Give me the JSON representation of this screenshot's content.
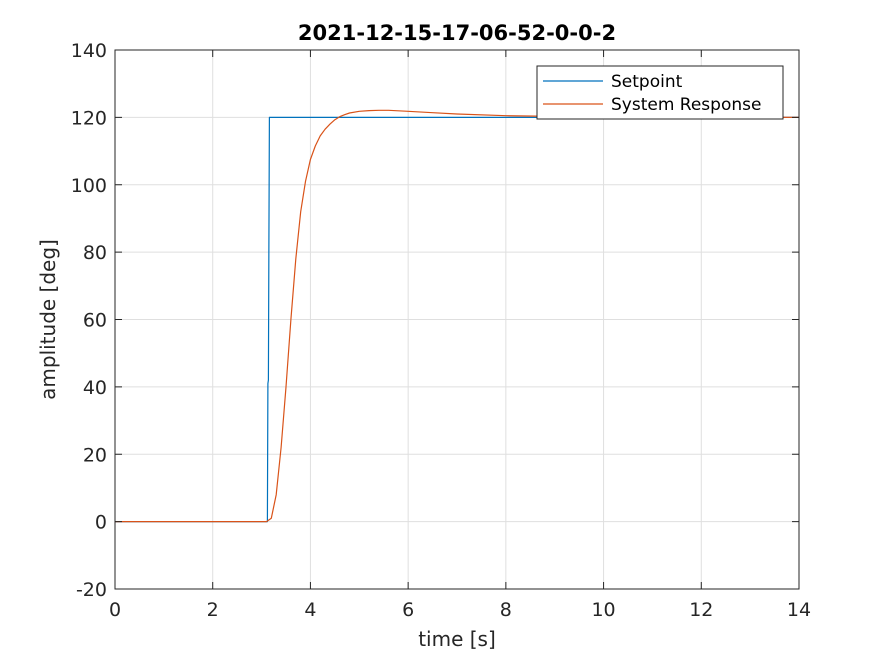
{
  "chart_data": {
    "type": "line",
    "title": "2021-12-15-17-06-52-0-0-2",
    "xlabel": "time [s]",
    "ylabel": "amplitude [deg]",
    "xlim": [
      0,
      14
    ],
    "ylim": [
      -20,
      140
    ],
    "xticks": [
      0,
      2,
      4,
      6,
      8,
      10,
      12,
      14
    ],
    "yticks": [
      -20,
      0,
      20,
      40,
      60,
      80,
      100,
      120,
      140
    ],
    "grid": true,
    "legend_position": "top-right",
    "series": [
      {
        "name": "Setpoint",
        "color": "#0072BD",
        "x": [
          0,
          3.12,
          3.13,
          3.14,
          3.15,
          3.16,
          14
        ],
        "y": [
          0,
          0,
          41,
          42,
          83,
          120,
          120
        ]
      },
      {
        "name": "System Response",
        "color": "#D95319",
        "x": [
          0,
          3.1,
          3.2,
          3.3,
          3.4,
          3.5,
          3.6,
          3.7,
          3.8,
          3.9,
          4.0,
          4.1,
          4.2,
          4.3,
          4.4,
          4.5,
          4.6,
          4.7,
          4.8,
          5.0,
          5.2,
          5.4,
          5.6,
          6.0,
          6.5,
          7.0,
          8.0,
          9.0,
          10.0,
          12.0,
          14.0
        ],
        "y": [
          0,
          0,
          1,
          8,
          22,
          40,
          60,
          78,
          92,
          101,
          107.5,
          111.5,
          114.5,
          116.5,
          118,
          119.3,
          120.2,
          120.8,
          121.3,
          121.8,
          122.0,
          122.1,
          122.1,
          121.8,
          121.4,
          121.0,
          120.5,
          120.3,
          120.2,
          120.1,
          120.0
        ]
      }
    ]
  }
}
